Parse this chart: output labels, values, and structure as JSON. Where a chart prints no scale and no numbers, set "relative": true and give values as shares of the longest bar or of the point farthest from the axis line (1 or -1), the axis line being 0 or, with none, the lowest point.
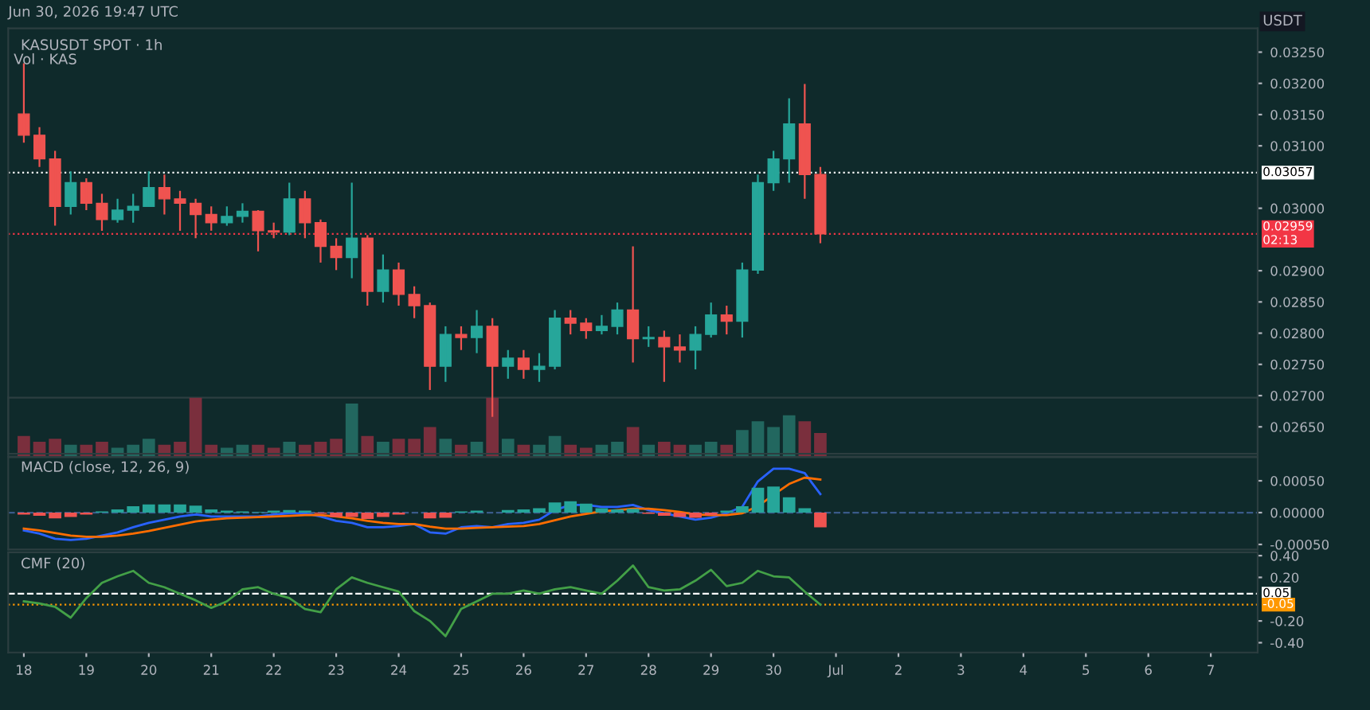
{
  "chart_data": [
    {
      "type": "candlestick",
      "title": "KASUSDT SPOT · 1h",
      "ylabel": "USDT",
      "annotations": [
        "Jun 30, 2026 19:47 UTC"
      ],
      "x": [
        "2026-06-18T00:00",
        "2026-06-18T06:00",
        "2026-06-18T12:00",
        "2026-06-18T18:00",
        "2026-06-19T00:00",
        "2026-06-19T06:00",
        "2026-06-19T12:00",
        "2026-06-19T18:00",
        "2026-06-20T00:00",
        "2026-06-20T06:00",
        "2026-06-20T12:00",
        "2026-06-20T18:00",
        "2026-06-21T00:00",
        "2026-06-21T06:00",
        "2026-06-21T12:00",
        "2026-06-21T18:00",
        "2026-06-22T00:00",
        "2026-06-22T06:00",
        "2026-06-22T12:00",
        "2026-06-22T18:00",
        "2026-06-23T00:00",
        "2026-06-23T06:00",
        "2026-06-23T12:00",
        "2026-06-23T18:00",
        "2026-06-24T00:00",
        "2026-06-24T06:00",
        "2026-06-24T12:00",
        "2026-06-24T18:00",
        "2026-06-25T00:00",
        "2026-06-25T06:00",
        "2026-06-25T12:00",
        "2026-06-25T18:00",
        "2026-06-26T00:00",
        "2026-06-26T06:00",
        "2026-06-26T12:00",
        "2026-06-26T18:00",
        "2026-06-27T00:00",
        "2026-06-27T06:00",
        "2026-06-27T12:00",
        "2026-06-27T18:00",
        "2026-06-28T00:00",
        "2026-06-28T06:00",
        "2026-06-28T12:00",
        "2026-06-28T18:00",
        "2026-06-29T00:00",
        "2026-06-29T06:00",
        "2026-06-29T12:00",
        "2026-06-29T18:00",
        "2026-06-30T00:00",
        "2026-06-30T06:00",
        "2026-06-30T12:00",
        "2026-06-30T18:00"
      ],
      "ohlc": [
        [
          0.03151,
          0.03232,
          0.03105,
          0.03117
        ],
        [
          0.03117,
          0.0313,
          0.03066,
          0.03079
        ],
        [
          0.03079,
          0.03092,
          0.02972,
          0.03003
        ],
        [
          0.03003,
          0.03059,
          0.0299,
          0.03041
        ],
        [
          0.03041,
          0.03048,
          0.02997,
          0.03008
        ],
        [
          0.03008,
          0.03023,
          0.02964,
          0.02982
        ],
        [
          0.02982,
          0.03015,
          0.02977,
          0.02997
        ],
        [
          0.02997,
          0.03023,
          0.02977,
          0.03003
        ],
        [
          0.03003,
          0.03059,
          0.03003,
          0.03033
        ],
        [
          0.03033,
          0.03054,
          0.0299,
          0.03015
        ],
        [
          0.03015,
          0.03028,
          0.02964,
          0.03008
        ],
        [
          0.03008,
          0.03015,
          0.02952,
          0.0299
        ],
        [
          0.0299,
          0.03003,
          0.02964,
          0.02977
        ],
        [
          0.02977,
          0.03003,
          0.02972,
          0.02987
        ],
        [
          0.02987,
          0.03008,
          0.02977,
          0.02995
        ],
        [
          0.02995,
          0.02997,
          0.02931,
          0.02964
        ],
        [
          0.02964,
          0.02977,
          0.02952,
          0.02962
        ],
        [
          0.02962,
          0.03041,
          0.02957,
          0.03015
        ],
        [
          0.03015,
          0.03028,
          0.02952,
          0.02977
        ],
        [
          0.02977,
          0.02982,
          0.02913,
          0.02939
        ],
        [
          0.02939,
          0.02952,
          0.02901,
          0.02921
        ],
        [
          0.02921,
          0.03041,
          0.02888,
          0.02952
        ],
        [
          0.02952,
          0.02957,
          0.02844,
          0.02867
        ],
        [
          0.02867,
          0.02926,
          0.02849,
          0.02901
        ],
        [
          0.02901,
          0.02913,
          0.02844,
          0.02862
        ],
        [
          0.02862,
          0.02875,
          0.02824,
          0.02844
        ],
        [
          0.02844,
          0.02849,
          0.02709,
          0.02747
        ],
        [
          0.02747,
          0.02811,
          0.02722,
          0.02798
        ],
        [
          0.02798,
          0.02811,
          0.02773,
          0.02793
        ],
        [
          0.02793,
          0.02837,
          0.02768,
          0.02811
        ],
        [
          0.02811,
          0.02824,
          0.02666,
          0.02747
        ],
        [
          0.02747,
          0.02773,
          0.02727,
          0.0276
        ],
        [
          0.0276,
          0.02773,
          0.02727,
          0.02742
        ],
        [
          0.02742,
          0.02768,
          0.02722,
          0.02747
        ],
        [
          0.02747,
          0.02837,
          0.02742,
          0.02824
        ],
        [
          0.02824,
          0.02837,
          0.02798,
          0.02816
        ],
        [
          0.02816,
          0.02824,
          0.02791,
          0.02804
        ],
        [
          0.02804,
          0.02829,
          0.02798,
          0.02811
        ],
        [
          0.02811,
          0.02849,
          0.02798,
          0.02837
        ],
        [
          0.02837,
          0.02939,
          0.02753,
          0.02791
        ],
        [
          0.02791,
          0.02811,
          0.02778,
          0.02793
        ],
        [
          0.02793,
          0.02804,
          0.02722,
          0.02778
        ],
        [
          0.02778,
          0.02798,
          0.02753,
          0.02773
        ],
        [
          0.02773,
          0.02811,
          0.02742,
          0.02798
        ],
        [
          0.02798,
          0.02849,
          0.02793,
          0.02829
        ],
        [
          0.02829,
          0.02844,
          0.02798,
          0.02819
        ],
        [
          0.02819,
          0.02913,
          0.02793,
          0.02901
        ],
        [
          0.02901,
          0.03054,
          0.02895,
          0.03041
        ],
        [
          0.03041,
          0.03092,
          0.03028,
          0.03079
        ],
        [
          0.03079,
          0.03176,
          0.03041,
          0.03135
        ],
        [
          0.03135,
          0.03199,
          0.03015,
          0.03054
        ],
        [
          0.03054,
          0.03066,
          0.02944,
          0.02959
        ]
      ],
      "colors": [
        "#ef5350",
        "#ef5350",
        "#ef5350",
        "#26a69a",
        "#ef5350",
        "#ef5350",
        "#26a69a",
        "#26a69a",
        "#26a69a",
        "#ef5350",
        "#ef5350",
        "#ef5350",
        "#ef5350",
        "#26a69a",
        "#26a69a",
        "#ef5350",
        "#ef5350",
        "#26a69a",
        "#ef5350",
        "#ef5350",
        "#ef5350",
        "#26a69a",
        "#ef5350",
        "#26a69a",
        "#ef5350",
        "#ef5350",
        "#ef5350",
        "#26a69a",
        "#ef5350",
        "#26a69a",
        "#ef5350",
        "#26a69a",
        "#ef5350",
        "#26a69a",
        "#26a69a",
        "#ef5350",
        "#ef5350",
        "#26a69a",
        "#26a69a",
        "#ef5350",
        "#26a69a",
        "#ef5350",
        "#ef5350",
        "#26a69a",
        "#26a69a",
        "#ef5350",
        "#26a69a",
        "#26a69a",
        "#26a69a",
        "#26a69a",
        "#ef5350",
        "#ef5350"
      ],
      "xlim": [
        "2026-06-17T18:00",
        "2026-07-07T18:00"
      ],
      "ylim": [
        0.02607,
        0.03288
      ],
      "yticks": [
        {
          "value": 0.0325,
          "label": "0.03250"
        },
        {
          "value": 0.032,
          "label": "0.03200"
        },
        {
          "value": 0.0315,
          "label": "0.03150"
        },
        {
          "value": 0.031,
          "label": "0.03100"
        },
        {
          "value": 0.03,
          "label": "0.03000"
        },
        {
          "value": 0.029,
          "label": "0.02900"
        },
        {
          "value": 0.0285,
          "label": "0.02850"
        },
        {
          "value": 0.028,
          "label": "0.02800"
        },
        {
          "value": 0.0275,
          "label": "0.02750"
        },
        {
          "value": 0.027,
          "label": "0.02700"
        },
        {
          "value": 0.0265,
          "label": "0.02650"
        }
      ],
      "ref_lines": [
        {
          "axis": "y",
          "value": 0.03057,
          "label": "0.03057",
          "color": "#ffffff",
          "line_style": "dotted"
        },
        {
          "axis": "y",
          "value": 0.02959,
          "label": "0.02959\n02:13",
          "color": "#f23645",
          "line_style": "dotted"
        }
      ],
      "tick_labels": "y"
    },
    {
      "type": "bar",
      "title": "Vol · KAS",
      "relative": true,
      "x": [
        "2026-06-18T00:00",
        "2026-06-18T06:00",
        "2026-06-18T12:00",
        "2026-06-18T18:00",
        "2026-06-19T00:00",
        "2026-06-19T06:00",
        "2026-06-19T12:00",
        "2026-06-19T18:00",
        "2026-06-20T00:00",
        "2026-06-20T06:00",
        "2026-06-20T12:00",
        "2026-06-20T18:00",
        "2026-06-21T00:00",
        "2026-06-21T06:00",
        "2026-06-21T12:00",
        "2026-06-21T18:00",
        "2026-06-22T00:00",
        "2026-06-22T06:00",
        "2026-06-22T12:00",
        "2026-06-22T18:00",
        "2026-06-23T00:00",
        "2026-06-23T06:00",
        "2026-06-23T12:00",
        "2026-06-23T18:00",
        "2026-06-24T00:00",
        "2026-06-24T06:00",
        "2026-06-24T12:00",
        "2026-06-24T18:00",
        "2026-06-25T00:00",
        "2026-06-25T06:00",
        "2026-06-25T12:00",
        "2026-06-25T18:00",
        "2026-06-26T00:00",
        "2026-06-26T06:00",
        "2026-06-26T12:00",
        "2026-06-26T18:00",
        "2026-06-27T00:00",
        "2026-06-27T06:00",
        "2026-06-27T12:00",
        "2026-06-27T18:00",
        "2026-06-28T00:00",
        "2026-06-28T06:00",
        "2026-06-28T12:00",
        "2026-06-28T18:00",
        "2026-06-29T00:00",
        "2026-06-29T06:00",
        "2026-06-29T12:00",
        "2026-06-29T18:00",
        "2026-06-30T00:00",
        "2026-06-30T06:00",
        "2026-06-30T12:00",
        "2026-06-30T18:00"
      ],
      "values": [
        0.35,
        0.25,
        0.3,
        0.2,
        0.2,
        0.25,
        0.15,
        0.2,
        0.3,
        0.2,
        0.25,
        1.0,
        0.2,
        0.15,
        0.2,
        0.2,
        0.15,
        0.25,
        0.2,
        0.25,
        0.3,
        0.9,
        0.35,
        0.25,
        0.3,
        0.3,
        0.5,
        0.3,
        0.2,
        0.25,
        1.0,
        0.3,
        0.2,
        0.2,
        0.35,
        0.2,
        0.15,
        0.2,
        0.25,
        0.5,
        0.2,
        0.25,
        0.2,
        0.2,
        0.25,
        0.2,
        0.45,
        0.6,
        0.5,
        0.7,
        0.6,
        0.4
      ],
      "colors": [
        "#7a2f3d",
        "#7a2f3d",
        "#7a2f3d",
        "#22675f",
        "#7a2f3d",
        "#7a2f3d",
        "#22675f",
        "#22675f",
        "#22675f",
        "#7a2f3d",
        "#7a2f3d",
        "#7a2f3d",
        "#7a2f3d",
        "#22675f",
        "#22675f",
        "#7a2f3d",
        "#7a2f3d",
        "#22675f",
        "#7a2f3d",
        "#7a2f3d",
        "#7a2f3d",
        "#22675f",
        "#7a2f3d",
        "#22675f",
        "#7a2f3d",
        "#7a2f3d",
        "#7a2f3d",
        "#22675f",
        "#7a2f3d",
        "#22675f",
        "#7a2f3d",
        "#22675f",
        "#7a2f3d",
        "#22675f",
        "#22675f",
        "#7a2f3d",
        "#7a2f3d",
        "#22675f",
        "#22675f",
        "#7a2f3d",
        "#22675f",
        "#7a2f3d",
        "#7a2f3d",
        "#22675f",
        "#22675f",
        "#7a2f3d",
        "#22675f",
        "#22675f",
        "#22675f",
        "#22675f",
        "#7a2f3d",
        "#7a2f3d"
      ],
      "xlim": [
        "2026-06-17T18:00",
        "2026-07-07T18:00"
      ],
      "tick_labels": false
    },
    {
      "type": "line",
      "title": "MACD (close, 12, 26, 9)",
      "x": [
        "2026-06-18T00:00",
        "2026-06-18T06:00",
        "2026-06-18T12:00",
        "2026-06-18T18:00",
        "2026-06-19T00:00",
        "2026-06-19T06:00",
        "2026-06-19T12:00",
        "2026-06-19T18:00",
        "2026-06-20T00:00",
        "2026-06-20T06:00",
        "2026-06-20T12:00",
        "2026-06-20T18:00",
        "2026-06-21T00:00",
        "2026-06-21T06:00",
        "2026-06-21T12:00",
        "2026-06-21T18:00",
        "2026-06-22T00:00",
        "2026-06-22T06:00",
        "2026-06-22T12:00",
        "2026-06-22T18:00",
        "2026-06-23T00:00",
        "2026-06-23T06:00",
        "2026-06-23T12:00",
        "2026-06-23T18:00",
        "2026-06-24T00:00",
        "2026-06-24T06:00",
        "2026-06-24T12:00",
        "2026-06-24T18:00",
        "2026-06-25T00:00",
        "2026-06-25T06:00",
        "2026-06-25T12:00",
        "2026-06-25T18:00",
        "2026-06-26T00:00",
        "2026-06-26T06:00",
        "2026-06-26T12:00",
        "2026-06-26T18:00",
        "2026-06-27T00:00",
        "2026-06-27T06:00",
        "2026-06-27T12:00",
        "2026-06-27T18:00",
        "2026-06-28T00:00",
        "2026-06-28T06:00",
        "2026-06-28T12:00",
        "2026-06-28T18:00",
        "2026-06-29T00:00",
        "2026-06-29T06:00",
        "2026-06-29T12:00",
        "2026-06-29T18:00",
        "2026-06-30T00:00",
        "2026-06-30T06:00",
        "2026-06-30T12:00",
        "2026-06-30T18:00"
      ],
      "series": [
        {
          "type": "bar",
          "color": "#26a69a",
          "values": [
            -3e-05,
            -5e-05,
            -9e-05,
            -7e-05,
            -3e-05,
            2e-05,
            5e-05,
            0.0001,
            0.00013,
            0.00013,
            0.00013,
            0.00011,
            5e-05,
            3e-05,
            2e-05,
            1e-05,
            3e-05,
            4e-05,
            3e-05,
            -2e-05,
            -7e-05,
            -7e-05,
            -0.0001,
            -7e-05,
            -3e-05,
            0.0,
            -9e-05,
            -8e-05,
            2e-05,
            3e-05,
            0.0,
            4e-05,
            5e-05,
            7e-05,
            0.00016,
            0.00018,
            0.00014,
            7e-05,
            5e-05,
            6e-05,
            -2e-05,
            -5e-05,
            -7e-05,
            -8e-05,
            -4e-05,
            3e-05,
            0.0001,
            0.00039,
            0.00041,
            0.00024,
            7e-05,
            -0.00023
          ],
          "colors": [
            "#ef5350",
            "#ef5350",
            "#ef5350",
            "#ef5350",
            "#ef5350",
            "#26a69a",
            "#26a69a",
            "#26a69a",
            "#26a69a",
            "#26a69a",
            "#26a69a",
            "#26a69a",
            "#26a69a",
            "#26a69a",
            "#26a69a",
            "#26a69a",
            "#26a69a",
            "#26a69a",
            "#26a69a",
            "#ef5350",
            "#ef5350",
            "#ef5350",
            "#ef5350",
            "#ef5350",
            "#ef5350",
            "#ef5350",
            "#ef5350",
            "#ef5350",
            "#26a69a",
            "#26a69a",
            "#26a69a",
            "#26a69a",
            "#26a69a",
            "#26a69a",
            "#26a69a",
            "#26a69a",
            "#26a69a",
            "#26a69a",
            "#26a69a",
            "#26a69a",
            "#ef5350",
            "#ef5350",
            "#ef5350",
            "#ef5350",
            "#ef5350",
            "#26a69a",
            "#26a69a",
            "#26a69a",
            "#26a69a",
            "#26a69a",
            "#26a69a",
            "#ef5350"
          ]
        },
        {
          "color": "#2962ff",
          "values": [
            -0.00028,
            -0.00033,
            -0.00041,
            -0.00043,
            -0.00041,
            -0.00036,
            -0.00031,
            -0.00023,
            -0.00016,
            -0.00011,
            -6e-05,
            -3e-05,
            -6e-05,
            -6e-05,
            -6e-05,
            -6e-05,
            -3e-05,
            -1e-05,
            -1e-05,
            -6e-05,
            -0.00013,
            -0.00016,
            -0.00023,
            -0.00023,
            -0.00021,
            -0.00018,
            -0.00031,
            -0.00033,
            -0.00023,
            -0.00021,
            -0.00023,
            -0.00018,
            -0.00016,
            -0.00011,
            4e-05,
            0.00012,
            0.00012,
            9e-05,
            9e-05,
            0.00012,
            4e-05,
            -1e-05,
            -6e-05,
            -0.00011,
            -8e-05,
            -1e-05,
            9e-05,
            0.00049,
            0.00069,
            0.00069,
            0.00062,
            0.00029
          ]
        },
        {
          "color": "#ff6d00",
          "values": [
            -0.00025,
            -0.00028,
            -0.00032,
            -0.00036,
            -0.00038,
            -0.00038,
            -0.00036,
            -0.00033,
            -0.00029,
            -0.00024,
            -0.00019,
            -0.00014,
            -0.00011,
            -9e-05,
            -8e-05,
            -7e-05,
            -6e-05,
            -5e-05,
            -4e-05,
            -4e-05,
            -6e-05,
            -9e-05,
            -0.00013,
            -0.00016,
            -0.00018,
            -0.00018,
            -0.00022,
            -0.00025,
            -0.00025,
            -0.00024,
            -0.00023,
            -0.00022,
            -0.00021,
            -0.00018,
            -0.00012,
            -6e-05,
            -2e-05,
            2e-05,
            4e-05,
            6e-05,
            6e-05,
            4e-05,
            1e-05,
            -3e-05,
            -4e-05,
            -4e-05,
            -1e-05,
            0.0001,
            0.00028,
            0.00045,
            0.00055,
            0.00052
          ]
        }
      ],
      "xlim": [
        "2026-06-17T18:00",
        "2026-07-07T18:00"
      ],
      "ylim": [
        -0.00058,
        0.00087
      ],
      "yticks": [
        {
          "value": 0.0005,
          "label": "0.00050"
        },
        {
          "value": 0.0,
          "label": "0.00000"
        },
        {
          "value": -0.0005,
          "label": "-0.00050"
        }
      ],
      "ref_lines": [
        {
          "axis": "y",
          "value": 0.0,
          "color": "#3a5a8a",
          "line_style": "dashed"
        }
      ],
      "tick_labels": "y"
    },
    {
      "type": "line",
      "title": "CMF (20)",
      "x": [
        "2026-06-18T00:00",
        "2026-06-18T06:00",
        "2026-06-18T12:00",
        "2026-06-18T18:00",
        "2026-06-19T00:00",
        "2026-06-19T06:00",
        "2026-06-19T12:00",
        "2026-06-19T18:00",
        "2026-06-20T00:00",
        "2026-06-20T06:00",
        "2026-06-20T12:00",
        "2026-06-20T18:00",
        "2026-06-21T00:00",
        "2026-06-21T06:00",
        "2026-06-21T12:00",
        "2026-06-21T18:00",
        "2026-06-22T00:00",
        "2026-06-22T06:00",
        "2026-06-22T12:00",
        "2026-06-22T18:00",
        "2026-06-23T00:00",
        "2026-06-23T06:00",
        "2026-06-23T12:00",
        "2026-06-23T18:00",
        "2026-06-24T00:00",
        "2026-06-24T06:00",
        "2026-06-24T12:00",
        "2026-06-24T18:00",
        "2026-06-25T00:00",
        "2026-06-25T06:00",
        "2026-06-25T12:00",
        "2026-06-25T18:00",
        "2026-06-26T00:00",
        "2026-06-26T06:00",
        "2026-06-26T12:00",
        "2026-06-26T18:00",
        "2026-06-27T00:00",
        "2026-06-27T06:00",
        "2026-06-27T12:00",
        "2026-06-27T18:00",
        "2026-06-28T00:00",
        "2026-06-28T06:00",
        "2026-06-28T12:00",
        "2026-06-28T18:00",
        "2026-06-29T00:00",
        "2026-06-29T06:00",
        "2026-06-29T12:00",
        "2026-06-29T18:00",
        "2026-06-30T00:00",
        "2026-06-30T06:00",
        "2026-06-30T12:00",
        "2026-06-30T18:00"
      ],
      "series": [
        {
          "color": "#43a047",
          "values": [
            -0.02,
            -0.04,
            -0.07,
            -0.17,
            0.01,
            0.15,
            0.21,
            0.26,
            0.15,
            0.11,
            0.05,
            -0.01,
            -0.08,
            -0.02,
            0.09,
            0.11,
            0.05,
            0.01,
            -0.09,
            -0.12,
            0.09,
            0.2,
            0.15,
            0.11,
            0.07,
            -0.11,
            -0.2,
            -0.34,
            -0.09,
            -0.02,
            0.05,
            0.05,
            0.08,
            0.05,
            0.09,
            0.11,
            0.08,
            0.05,
            0.17,
            0.31,
            0.11,
            0.08,
            0.09,
            0.17,
            0.27,
            0.12,
            0.15,
            0.26,
            0.21,
            0.2,
            0.07,
            -0.05
          ]
        }
      ],
      "xlim": [
        "2026-06-17T18:00",
        "2026-07-07T18:00"
      ],
      "ylim": [
        -0.49,
        0.43
      ],
      "yticks": [
        {
          "value": 0.4,
          "label": "0.40"
        },
        {
          "value": 0.2,
          "label": "0.20"
        },
        {
          "value": -0.2,
          "label": "-0.20"
        },
        {
          "value": -0.4,
          "label": "-0.40"
        }
      ],
      "xticks": [
        {
          "value": "2026-06-18",
          "label": "18"
        },
        {
          "value": "2026-06-19",
          "label": "19"
        },
        {
          "value": "2026-06-20",
          "label": "20"
        },
        {
          "value": "2026-06-21",
          "label": "21"
        },
        {
          "value": "2026-06-22",
          "label": "22"
        },
        {
          "value": "2026-06-23",
          "label": "23"
        },
        {
          "value": "2026-06-24",
          "label": "24"
        },
        {
          "value": "2026-06-25",
          "label": "25"
        },
        {
          "value": "2026-06-26",
          "label": "26"
        },
        {
          "value": "2026-06-27",
          "label": "27"
        },
        {
          "value": "2026-06-28",
          "label": "28"
        },
        {
          "value": "2026-06-29",
          "label": "29"
        },
        {
          "value": "2026-06-30",
          "label": "30"
        },
        {
          "value": "2026-07-01",
          "label": "Jul"
        },
        {
          "value": "2026-07-02",
          "label": "2"
        },
        {
          "value": "2026-07-03",
          "label": "3"
        },
        {
          "value": "2026-07-04",
          "label": "4"
        },
        {
          "value": "2026-07-05",
          "label": "5"
        },
        {
          "value": "2026-07-06",
          "label": "6"
        },
        {
          "value": "2026-07-07",
          "label": "7"
        }
      ],
      "ref_lines": [
        {
          "axis": "y",
          "value": 0.05,
          "label": "0.05",
          "color": "#ffffff",
          "line_style": "dashed"
        },
        {
          "axis": "y",
          "value": -0.05,
          "label": "-0.05",
          "color": "#ff9800",
          "line_style": "dotted"
        }
      ]
    }
  ]
}
